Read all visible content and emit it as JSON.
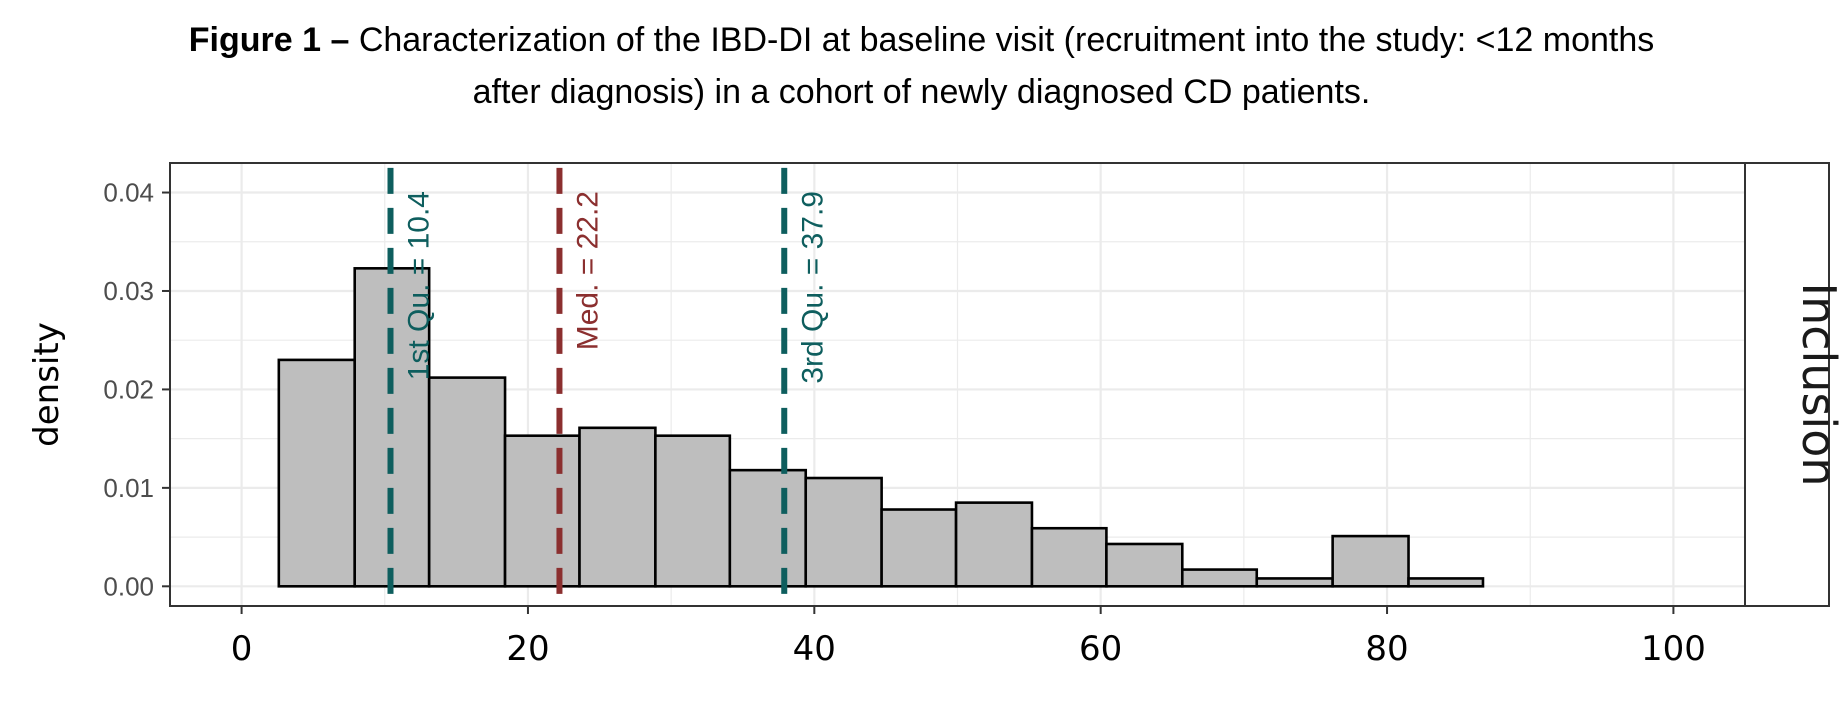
{
  "caption": {
    "label": "Figure 1 –",
    "text": "Characterization of the IBD-DI at baseline visit (recruitment into the study: <12 months",
    "text2": "after diagnosis) in a cohort of newly diagnosed CD patients."
  },
  "chart_data": {
    "type": "bar",
    "subtype": "histogram",
    "ylabel": "density",
    "xlabel": "",
    "facet_label": "Inclusion",
    "xlim": [
      -5,
      105
    ],
    "ylim": [
      -0.002,
      0.043
    ],
    "x_ticks": [
      "0",
      "20",
      "40",
      "60",
      "80",
      "100"
    ],
    "x_tick_values": [
      0,
      20,
      40,
      60,
      80,
      100
    ],
    "y_ticks": [
      "0.00",
      "0.01",
      "0.02",
      "0.03",
      "0.04"
    ],
    "y_tick_values": [
      0,
      0.01,
      0.02,
      0.03,
      0.04
    ],
    "grid": true,
    "bins": [
      {
        "x0": 2.6,
        "x1": 7.9,
        "density": 0.023
      },
      {
        "x0": 7.9,
        "x1": 13.1,
        "density": 0.0323
      },
      {
        "x0": 13.1,
        "x1": 18.4,
        "density": 0.0212
      },
      {
        "x0": 18.4,
        "x1": 23.6,
        "density": 0.0153
      },
      {
        "x0": 23.6,
        "x1": 28.9,
        "density": 0.0161
      },
      {
        "x0": 28.9,
        "x1": 34.1,
        "density": 0.0153
      },
      {
        "x0": 34.1,
        "x1": 39.4,
        "density": 0.0118
      },
      {
        "x0": 39.4,
        "x1": 44.7,
        "density": 0.011
      },
      {
        "x0": 44.7,
        "x1": 49.9,
        "density": 0.0078
      },
      {
        "x0": 49.9,
        "x1": 55.2,
        "density": 0.0085
      },
      {
        "x0": 55.2,
        "x1": 60.4,
        "density": 0.0059
      },
      {
        "x0": 60.4,
        "x1": 65.7,
        "density": 0.0043
      },
      {
        "x0": 65.7,
        "x1": 70.9,
        "density": 0.0017
      },
      {
        "x0": 70.9,
        "x1": 76.2,
        "density": 0.0008
      },
      {
        "x0": 76.2,
        "x1": 81.5,
        "density": 0.0051
      },
      {
        "x0": 81.5,
        "x1": 86.7,
        "density": 0.0008
      },
      {
        "x0": 86.7,
        "x1": 92.0,
        "density": 0.0
      },
      {
        "x0": 92.0,
        "x1": 97.2,
        "density": 0.0
      }
    ],
    "annotations": [
      {
        "label": "1st Qu. = 10.4",
        "x": 10.4,
        "color": "#0e5e5e"
      },
      {
        "label": "Med. = 22.2",
        "x": 22.2,
        "color": "#8b2f2f"
      },
      {
        "label": "3rd Qu. = 37.9",
        "x": 37.9,
        "color": "#0e5e5e"
      }
    ],
    "colors": {
      "bar_fill": "#bebebe",
      "bar_stroke": "#000000",
      "grid": "#ebebeb"
    }
  }
}
